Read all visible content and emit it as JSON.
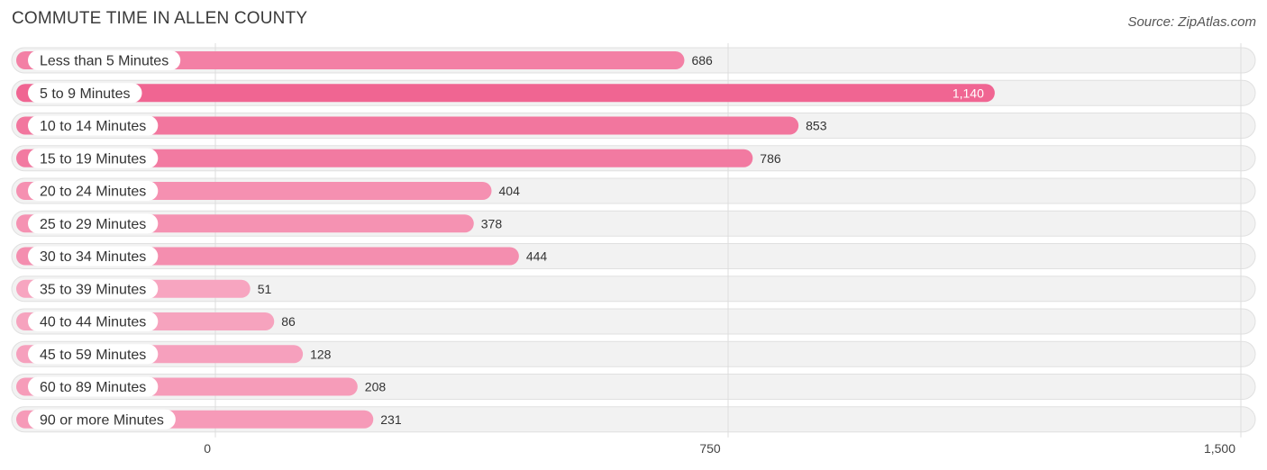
{
  "title": "COMMUTE TIME IN ALLEN COUNTY",
  "source": "Source: ZipAtlas.com",
  "chart_data": {
    "type": "bar",
    "orientation": "horizontal",
    "title": "COMMUTE TIME IN ALLEN COUNTY",
    "xlabel": "",
    "ylabel": "",
    "categories": [
      "Less than 5 Minutes",
      "5 to 9 Minutes",
      "10 to 14 Minutes",
      "15 to 19 Minutes",
      "20 to 24 Minutes",
      "25 to 29 Minutes",
      "30 to 34 Minutes",
      "35 to 39 Minutes",
      "40 to 44 Minutes",
      "45 to 59 Minutes",
      "60 to 89 Minutes",
      "90 or more Minutes"
    ],
    "values": [
      686,
      1140,
      853,
      786,
      404,
      378,
      444,
      51,
      86,
      128,
      208,
      231
    ],
    "value_labels": [
      "686",
      "1,140",
      "853",
      "786",
      "404",
      "378",
      "444",
      "51",
      "86",
      "128",
      "208",
      "231"
    ],
    "xlim": [
      0,
      1500
    ],
    "ticks": [
      0,
      750,
      1500
    ],
    "tick_labels": [
      "0",
      "750",
      "1,500"
    ],
    "grid": true,
    "colors": {
      "bar_max": "#f06592",
      "bar_min": "#f7a8c2",
      "track": "#f2f2f2",
      "track_border": "#e0e0e0",
      "gridline": "#dddddd"
    }
  }
}
